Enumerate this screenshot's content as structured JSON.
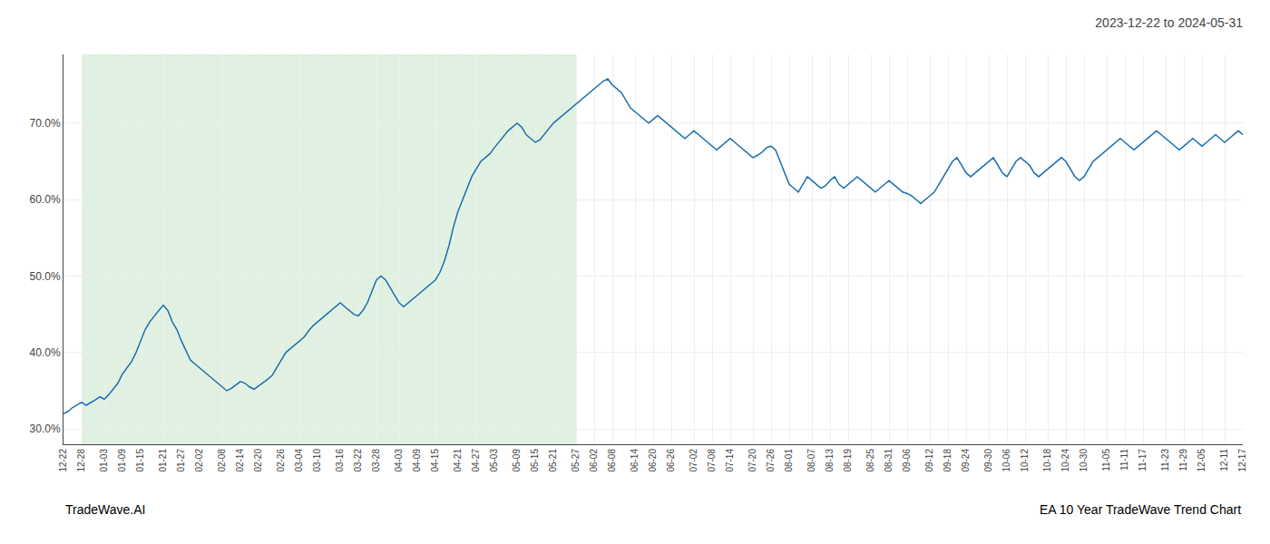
{
  "chart_data": {
    "type": "line",
    "title": "2023-12-22 to 2024-05-31",
    "annotations": [
      "TradeWave.AI",
      "EA 10 Year TradeWave Trend Chart"
    ],
    "color": "#1b6faf",
    "grid": true,
    "shaded_region": {
      "from": "12-28",
      "to": "05-27",
      "color": "#c8e6c8"
    },
    "ylim": [
      28,
      79
    ],
    "yticks": [
      {
        "value": 30.0,
        "label": "30.0%"
      },
      {
        "value": 40.0,
        "label": "40.0%"
      },
      {
        "value": 50.0,
        "label": "50.0%"
      },
      {
        "value": 60.0,
        "label": "60.0%"
      },
      {
        "value": 70.0,
        "label": "70.0%"
      }
    ],
    "categories": [
      "12-22",
      null,
      null,
      null,
      "12-28",
      null,
      null,
      null,
      null,
      "01-03",
      null,
      null,
      null,
      "01-09",
      null,
      null,
      null,
      "01-15",
      null,
      null,
      null,
      null,
      "01-21",
      null,
      null,
      null,
      "01-27",
      null,
      null,
      null,
      "02-02",
      null,
      null,
      null,
      null,
      "02-08",
      null,
      null,
      null,
      "02-14",
      null,
      null,
      null,
      "02-20",
      null,
      null,
      null,
      null,
      "02-26",
      null,
      null,
      null,
      "03-04",
      null,
      null,
      null,
      "03-10",
      null,
      null,
      null,
      null,
      "03-16",
      null,
      null,
      null,
      "03-22",
      null,
      null,
      null,
      "03-28",
      null,
      null,
      null,
      null,
      "04-03",
      null,
      null,
      null,
      "04-09",
      null,
      null,
      null,
      "04-15",
      null,
      null,
      null,
      null,
      "04-21",
      null,
      null,
      null,
      "04-27",
      null,
      null,
      null,
      "05-03",
      null,
      null,
      null,
      null,
      "05-09",
      null,
      null,
      null,
      "05-15",
      null,
      null,
      null,
      "05-21",
      null,
      null,
      null,
      null,
      "05-27",
      null,
      null,
      null,
      "06-02",
      null,
      null,
      null,
      "06-08",
      null,
      null,
      null,
      null,
      "06-14",
      null,
      null,
      null,
      "06-20",
      null,
      null,
      null,
      "06-26",
      null,
      null,
      null,
      null,
      "07-02",
      null,
      null,
      null,
      "07-08",
      null,
      null,
      null,
      "07-14",
      null,
      null,
      null,
      null,
      "07-20",
      null,
      null,
      null,
      "07-26",
      null,
      null,
      null,
      "08-01",
      null,
      null,
      null,
      null,
      "08-07",
      null,
      null,
      null,
      "08-13",
      null,
      null,
      null,
      "08-19",
      null,
      null,
      null,
      null,
      "08-25",
      null,
      null,
      null,
      "08-31",
      null,
      null,
      null,
      "09-06",
      null,
      null,
      null,
      null,
      "09-12",
      null,
      null,
      null,
      "09-18",
      null,
      null,
      null,
      "09-24",
      null,
      null,
      null,
      null,
      "09-30",
      null,
      null,
      null,
      "10-06",
      null,
      null,
      null,
      "10-12",
      null,
      null,
      null,
      null,
      "10-18",
      null,
      null,
      null,
      "10-24",
      null,
      null,
      null,
      "10-30",
      null,
      null,
      null,
      null,
      "11-05",
      null,
      null,
      null,
      "11-11",
      null,
      null,
      null,
      "11-17",
      null,
      null,
      null,
      null,
      "11-23",
      null,
      null,
      null,
      "11-29",
      null,
      null,
      null,
      "12-05",
      null,
      null,
      null,
      null,
      "12-11",
      null,
      null,
      null,
      "12-17"
    ],
    "values": [
      32.0,
      32.3,
      32.8,
      33.2,
      33.5,
      33.1,
      33.4,
      33.8,
      34.2,
      33.9,
      34.5,
      35.2,
      36.0,
      37.2,
      38.0,
      38.8,
      40.0,
      41.5,
      43.0,
      44.0,
      44.8,
      45.5,
      46.2,
      45.5,
      44.0,
      43.0,
      41.5,
      40.2,
      39.0,
      38.5,
      38.0,
      37.5,
      37.0,
      36.5,
      36.0,
      35.5,
      35.0,
      35.3,
      35.8,
      36.2,
      36.0,
      35.5,
      35.2,
      35.6,
      36.0,
      36.5,
      37.0,
      38.0,
      39.0,
      40.0,
      40.5,
      41.0,
      41.5,
      42.0,
      42.8,
      43.5,
      44.0,
      44.5,
      45.0,
      45.5,
      46.0,
      46.5,
      46.0,
      45.5,
      45.0,
      44.8,
      45.5,
      46.5,
      48.0,
      49.5,
      50.0,
      49.5,
      48.5,
      47.5,
      46.5,
      46.0,
      46.5,
      47.0,
      47.5,
      48.0,
      48.5,
      49.0,
      49.5,
      50.5,
      52.0,
      54.0,
      56.5,
      58.5,
      60.0,
      61.5,
      63.0,
      64.0,
      65.0,
      65.5,
      66.0,
      66.8,
      67.5,
      68.2,
      69.0,
      69.5,
      70.0,
      69.5,
      68.5,
      68.0,
      67.5,
      67.8,
      68.5,
      69.2,
      70.0,
      70.5,
      71.0,
      71.5,
      72.0,
      72.5,
      73.0,
      73.5,
      74.0,
      74.5,
      75.0,
      75.5,
      75.8,
      75.0,
      74.5,
      74.0,
      73.0,
      72.0,
      71.5,
      71.0,
      70.5,
      70.0,
      70.5,
      71.0,
      70.5,
      70.0,
      69.5,
      69.0,
      68.5,
      68.0,
      68.5,
      69.0,
      68.5,
      68.0,
      67.5,
      67.0,
      66.5,
      67.0,
      67.5,
      68.0,
      67.5,
      67.0,
      66.5,
      66.0,
      65.5,
      65.8,
      66.2,
      66.8,
      67.0,
      66.5,
      65.0,
      63.5,
      62.0,
      61.5,
      61.0,
      62.0,
      63.0,
      62.5,
      62.0,
      61.5,
      61.8,
      62.5,
      63.0,
      62.0,
      61.5,
      62.0,
      62.5,
      63.0,
      62.5,
      62.0,
      61.5,
      61.0,
      61.5,
      62.0,
      62.5,
      62.0,
      61.5,
      61.0,
      60.8,
      60.5,
      60.0,
      59.5,
      60.0,
      60.5,
      61.0,
      62.0,
      63.0,
      64.0,
      65.0,
      65.5,
      64.5,
      63.5,
      63.0,
      63.5,
      64.0,
      64.5,
      65.0,
      65.5,
      64.5,
      63.5,
      63.0,
      64.0,
      65.0,
      65.5,
      65.0,
      64.5,
      63.5,
      63.0,
      63.5,
      64.0,
      64.5,
      65.0,
      65.5,
      65.0,
      64.0,
      63.0,
      62.5,
      63.0,
      64.0,
      65.0,
      65.5,
      66.0,
      66.5,
      67.0,
      67.5,
      68.0,
      67.5,
      67.0,
      66.5,
      67.0,
      67.5,
      68.0,
      68.5,
      69.0,
      68.5,
      68.0,
      67.5,
      67.0,
      66.5,
      67.0,
      67.5,
      68.0,
      67.5,
      67.0,
      67.5,
      68.0,
      68.5,
      68.0,
      67.5,
      68.0,
      68.5,
      69.0,
      68.5
    ]
  }
}
